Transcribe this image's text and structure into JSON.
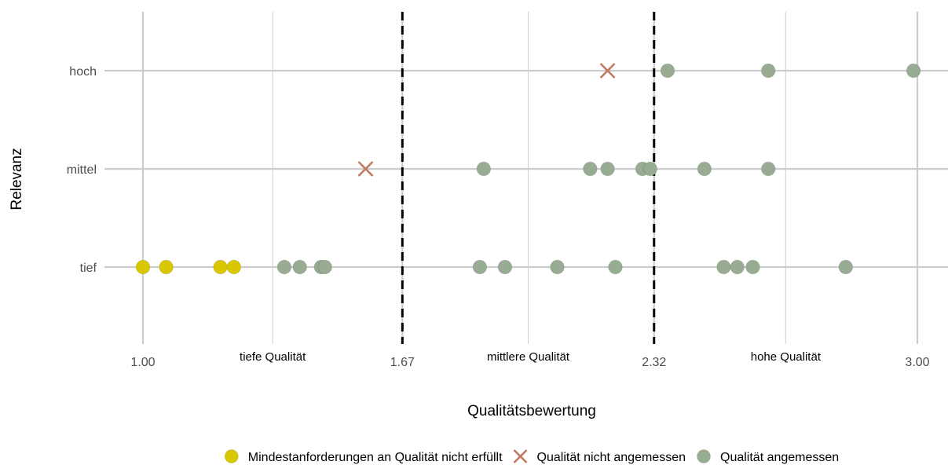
{
  "chart_data": {
    "type": "scatter",
    "title": "",
    "xlabel": "Qualitätsbewertung",
    "ylabel": "Relevanz",
    "xlim": [
      1.0,
      3.0
    ],
    "x_ticks": [
      {
        "value": 1.0,
        "label": "1.00"
      },
      {
        "value": 1.67,
        "label": "1.67"
      },
      {
        "value": 2.32,
        "label": "2.32"
      },
      {
        "value": 3.0,
        "label": "3.00"
      }
    ],
    "y_categories": [
      "tief",
      "mittel",
      "hoch"
    ],
    "thresholds": [
      1.67,
      2.32
    ],
    "zone_labels": [
      {
        "label": "tiefe Qualität",
        "x": 1.335
      },
      {
        "label": "mittlere Qualität",
        "x": 1.995
      },
      {
        "label": "hohe Qualität",
        "x": 2.66
      }
    ],
    "grid": true,
    "legend_position": "bottom",
    "series": [
      {
        "name": "Mindestanforderungen an Qualität nicht erfüllt",
        "marker": "circle",
        "color": "#d9c700",
        "points": [
          {
            "x": 1.0,
            "y": "tief"
          },
          {
            "x": 1.06,
            "y": "tief"
          },
          {
            "x": 1.2,
            "y": "tief"
          },
          {
            "x": 1.235,
            "y": "tief"
          }
        ]
      },
      {
        "name": "Qualität nicht angemessen",
        "marker": "x",
        "color": "#c07a5f",
        "points": [
          {
            "x": 1.575,
            "y": "mittel"
          },
          {
            "x": 2.2,
            "y": "hoch"
          }
        ]
      },
      {
        "name": "Qualität angemessen",
        "marker": "circle",
        "color": "#98ab93",
        "points": [
          {
            "x": 1.365,
            "y": "tief"
          },
          {
            "x": 1.405,
            "y": "tief"
          },
          {
            "x": 1.46,
            "y": "tief"
          },
          {
            "x": 1.47,
            "y": "tief"
          },
          {
            "x": 1.87,
            "y": "tief"
          },
          {
            "x": 1.935,
            "y": "tief"
          },
          {
            "x": 2.07,
            "y": "tief"
          },
          {
            "x": 2.22,
            "y": "tief"
          },
          {
            "x": 2.5,
            "y": "tief"
          },
          {
            "x": 2.535,
            "y": "tief"
          },
          {
            "x": 2.575,
            "y": "tief"
          },
          {
            "x": 2.815,
            "y": "tief"
          },
          {
            "x": 1.88,
            "y": "mittel"
          },
          {
            "x": 2.155,
            "y": "mittel"
          },
          {
            "x": 2.2,
            "y": "mittel"
          },
          {
            "x": 2.29,
            "y": "mittel"
          },
          {
            "x": 2.31,
            "y": "mittel"
          },
          {
            "x": 2.45,
            "y": "mittel"
          },
          {
            "x": 2.615,
            "y": "mittel"
          },
          {
            "x": 2.355,
            "y": "hoch"
          },
          {
            "x": 2.615,
            "y": "hoch"
          },
          {
            "x": 2.99,
            "y": "hoch"
          }
        ]
      }
    ]
  }
}
